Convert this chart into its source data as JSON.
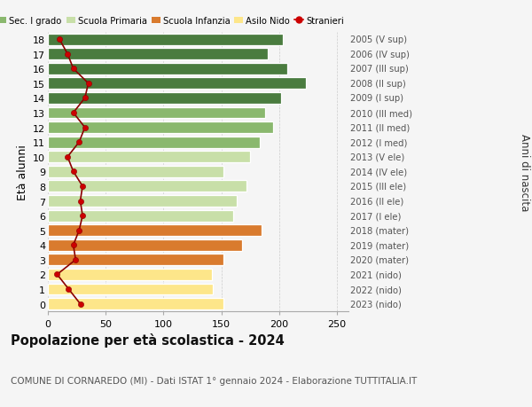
{
  "ages": [
    0,
    1,
    2,
    3,
    4,
    5,
    6,
    7,
    8,
    9,
    10,
    11,
    12,
    13,
    14,
    15,
    16,
    17,
    18
  ],
  "bar_values": [
    152,
    143,
    142,
    152,
    168,
    185,
    160,
    163,
    172,
    152,
    175,
    183,
    195,
    188,
    202,
    223,
    207,
    190,
    203
  ],
  "bar_colors": [
    "#fde68a",
    "#fde68a",
    "#fde68a",
    "#d97b2e",
    "#d97b2e",
    "#d97b2e",
    "#c8dfa8",
    "#c8dfa8",
    "#c8dfa8",
    "#c8dfa8",
    "#c8dfa8",
    "#8ab86e",
    "#8ab86e",
    "#8ab86e",
    "#4a7c3f",
    "#4a7c3f",
    "#4a7c3f",
    "#4a7c3f",
    "#4a7c3f"
  ],
  "stranieri_values": [
    28,
    18,
    8,
    24,
    22,
    27,
    30,
    28,
    30,
    22,
    17,
    27,
    32,
    22,
    32,
    35,
    22,
    17,
    10
  ],
  "right_labels": [
    "2023 (nido)",
    "2022 (nido)",
    "2021 (nido)",
    "2020 (mater)",
    "2019 (mater)",
    "2018 (mater)",
    "2017 (I ele)",
    "2016 (II ele)",
    "2015 (III ele)",
    "2014 (IV ele)",
    "2013 (V ele)",
    "2012 (I med)",
    "2011 (II med)",
    "2010 (III med)",
    "2009 (I sup)",
    "2008 (II sup)",
    "2007 (III sup)",
    "2006 (IV sup)",
    "2005 (V sup)"
  ],
  "legend_labels": [
    "Sec. II grado",
    "Sec. I grado",
    "Scuola Primaria",
    "Scuola Infanzia",
    "Asilo Nido",
    "Stranieri"
  ],
  "legend_colors": [
    "#4a7c3f",
    "#8ab86e",
    "#c8dfa8",
    "#d97b2e",
    "#fde68a",
    "#cc0000"
  ],
  "ylabel_left": "Età alunni",
  "ylabel_right": "Anni di nascita",
  "title": "Popolazione per età scolastica - 2024",
  "subtitle": "COMUNE DI CORNAREDO (MI) - Dati ISTAT 1° gennaio 2024 - Elaborazione TUTTITALIA.IT",
  "xlim": [
    0,
    260
  ],
  "xticks": [
    0,
    50,
    100,
    150,
    200,
    250
  ],
  "background_color": "#f5f5f5",
  "grid_color": "#cccccc",
  "stranieri_line_color": "#8b0000",
  "stranieri_dot_color": "#cc0000"
}
